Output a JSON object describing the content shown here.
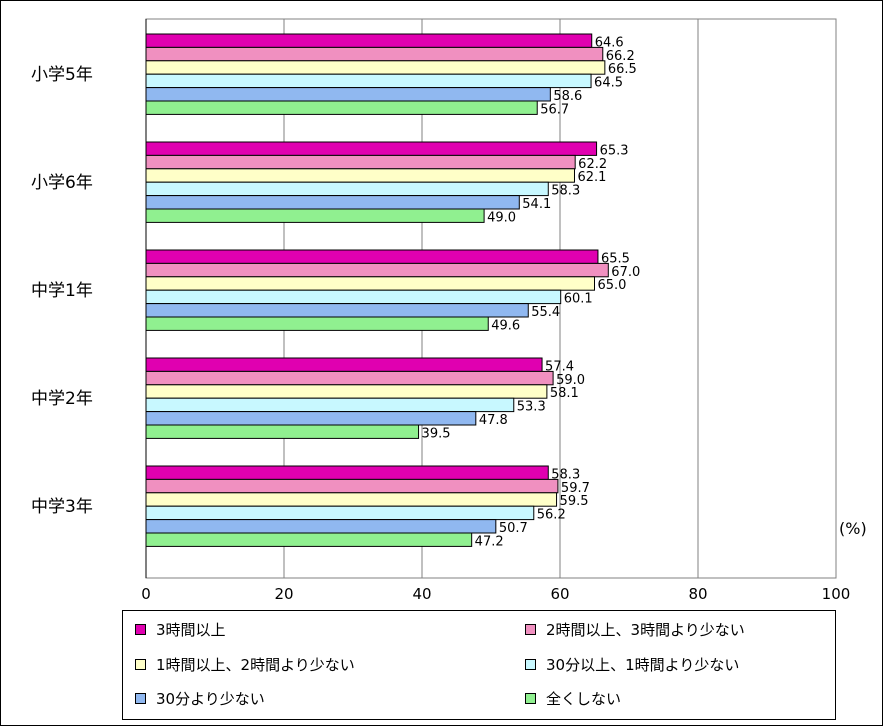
{
  "chart_data": {
    "type": "bar",
    "orientation": "horizontal",
    "categories": [
      "小学5年",
      "小学6年",
      "中学1年",
      "中学2年",
      "中学3年"
    ],
    "series": [
      {
        "name": "3時間以上",
        "color": "#e000b0",
        "values": [
          64.6,
          65.3,
          65.5,
          57.4,
          58.3
        ],
        "labels": [
          "64.6",
          "65.3",
          "65.5",
          "57.4",
          "58.3"
        ]
      },
      {
        "name": "2時間以上、3時間より少ない",
        "color": "#f090c0",
        "values": [
          66.2,
          62.2,
          67.0,
          59.0,
          59.7
        ],
        "labels": [
          "66.2",
          "62.2",
          "67.0",
          "59.0",
          "59.7"
        ]
      },
      {
        "name": "1時間以上、2時間より少ない",
        "color": "#ffffc8",
        "values": [
          66.5,
          62.1,
          65.0,
          58.1,
          59.5
        ],
        "labels": [
          "66.5",
          "62.1",
          "65.0",
          "58.1",
          "59.5"
        ]
      },
      {
        "name": "30分以上、1時間より少ない",
        "color": "#c8f8ff",
        "values": [
          64.5,
          58.3,
          60.1,
          53.3,
          56.2
        ],
        "labels": [
          "64.5",
          "58.3",
          "60.1",
          "53.3",
          "56.2"
        ]
      },
      {
        "name": "30分より少ない",
        "color": "#90b8f0",
        "values": [
          58.6,
          54.1,
          55.4,
          47.8,
          50.7
        ],
        "labels": [
          "58.6",
          "54.1",
          "55.4",
          "47.8",
          "50.7"
        ]
      },
      {
        "name": "全くしない",
        "color": "#90f090",
        "values": [
          56.7,
          49.0,
          49.6,
          39.5,
          47.2
        ],
        "labels": [
          "56.7",
          "49.0",
          "49.6",
          "39.5",
          "47.2"
        ]
      }
    ],
    "xlim": [
      0,
      100
    ],
    "xticks": [
      "0",
      "20",
      "40",
      "60",
      "80",
      "100"
    ],
    "unit_label": "(%)",
    "grid": true,
    "legend_position": "bottom"
  }
}
